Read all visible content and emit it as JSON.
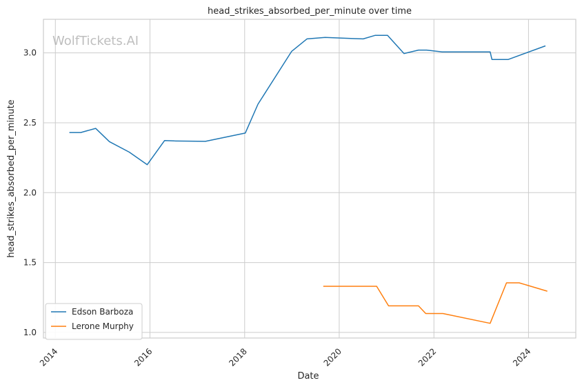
{
  "chart_data": {
    "type": "line",
    "title": "head_strikes_absorbed_per_minute over time",
    "xlabel": "Date",
    "ylabel": "head_strikes_absorbed_per_minute",
    "watermark": "WolfTickets.AI",
    "x_ticks": [
      "2014",
      "2016",
      "2018",
      "2020",
      "2022",
      "2024"
    ],
    "y_ticks": [
      "1.0",
      "1.5",
      "2.0",
      "2.5",
      "3.0"
    ],
    "xlim": [
      "2013-10-01",
      "2024-12-31"
    ],
    "ylim": [
      0.96,
      3.24
    ],
    "grid": true,
    "legend_position": "lower-left",
    "series": [
      {
        "name": "Edson Barboza",
        "color": "#1f77b4",
        "x": [
          "2014-04-19",
          "2014-07-16",
          "2014-11-08",
          "2015-02-22",
          "2015-07-25",
          "2015-12-11",
          "2016-04-23",
          "2016-07-07",
          "2017-03-04",
          "2018-01-06",
          "2018-04-14",
          "2018-12-29",
          "2019-04-27",
          "2019-09-14",
          "2020-07-04",
          "2020-10-03",
          "2021-01-08",
          "2021-05-15",
          "2021-09-04",
          "2021-11-06",
          "2022-03-05",
          "2023-03-11",
          "2023-03-25",
          "2023-07-29",
          "2024-05-11"
        ],
        "y": [
          2.43,
          2.43,
          2.46,
          2.365,
          2.29,
          2.2,
          2.373,
          2.37,
          2.367,
          2.426,
          2.633,
          3.01,
          3.1,
          3.11,
          3.1,
          3.125,
          3.125,
          2.995,
          3.02,
          3.02,
          3.007,
          3.007,
          2.953,
          2.953,
          3.05
        ]
      },
      {
        "name": "Lerone Murphy",
        "color": "#ff7f0e",
        "x": [
          "2019-08-31",
          "2020-10-16",
          "2021-01-16",
          "2021-09-04",
          "2021-10-30",
          "2022-03-12",
          "2023-03-11",
          "2023-07-15",
          "2023-10-21",
          "2024-05-25"
        ],
        "y": [
          1.33,
          1.33,
          1.19,
          1.19,
          1.135,
          1.135,
          1.065,
          1.355,
          1.355,
          1.295
        ]
      }
    ]
  }
}
